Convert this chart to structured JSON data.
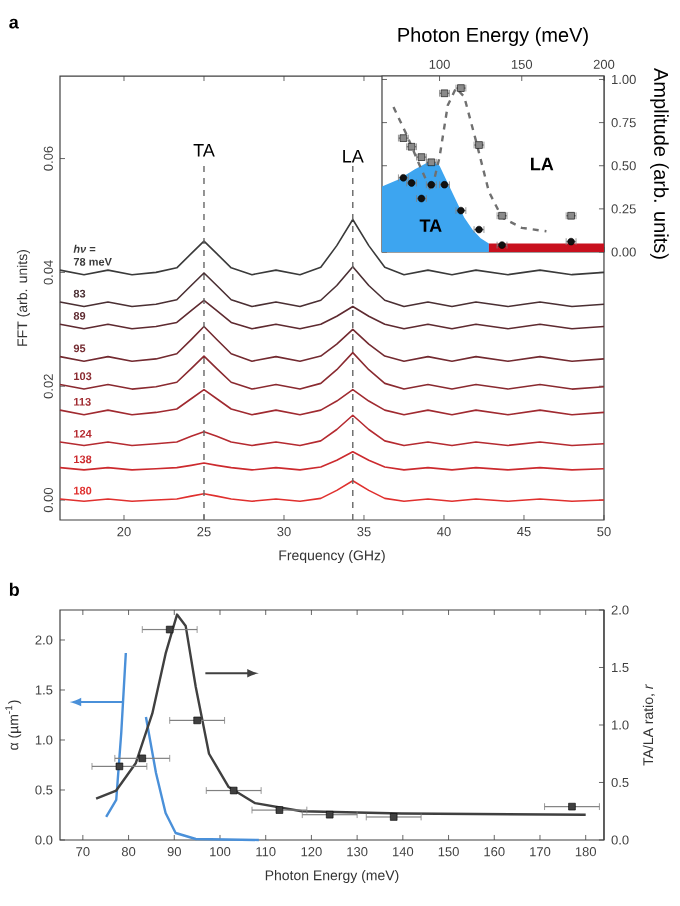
{
  "chart_data": [
    {
      "type": "line",
      "xlabel": "Frequency (GHz)",
      "ylabel": "FFT (arb. units)",
      "xlim": [
        16,
        50
      ],
      "ylim": [
        -0.0035,
        0.0745
      ],
      "xticks": [
        20,
        25,
        30,
        35,
        40,
        45,
        50
      ],
      "yticks": [
        {
          "value": 0,
          "label": "0.00"
        },
        {
          "value": 0.02,
          "label": "0.02"
        },
        {
          "value": 0.04,
          "label": "0.04"
        },
        {
          "value": 0.06,
          "label": "0.06"
        }
      ],
      "x": [
        16,
        17.5,
        19,
        20.5,
        22,
        23.3,
        24.2,
        25,
        25.8,
        26.7,
        28,
        29.5,
        31,
        32.3,
        33.3,
        34.3,
        35.3,
        36.3,
        37.5,
        39,
        40.5,
        42,
        44,
        46,
        48,
        50
      ],
      "series": [
        {
          "name": "78 meV",
          "color": "#3a3a3a",
          "values": [
            0.0404,
            0.0396,
            0.0404,
            0.0396,
            0.04,
            0.0408,
            0.0433,
            0.0455,
            0.0433,
            0.0408,
            0.0396,
            0.0404,
            0.0396,
            0.0409,
            0.0447,
            0.0493,
            0.0447,
            0.0409,
            0.0396,
            0.0404,
            0.0396,
            0.0404,
            0.0396,
            0.0404,
            0.0396,
            0.04
          ]
        },
        {
          "name": "83",
          "color": "#4a2f33",
          "values": [
            0.0348,
            0.034,
            0.0348,
            0.034,
            0.0344,
            0.0352,
            0.0377,
            0.0399,
            0.0377,
            0.0352,
            0.034,
            0.0348,
            0.034,
            0.0351,
            0.0377,
            0.041,
            0.0377,
            0.0351,
            0.034,
            0.0348,
            0.034,
            0.0348,
            0.034,
            0.0348,
            0.034,
            0.0344
          ]
        },
        {
          "name": "89",
          "color": "#5e2a30",
          "values": [
            0.0309,
            0.0301,
            0.0309,
            0.0301,
            0.0305,
            0.0312,
            0.0333,
            0.0351,
            0.0333,
            0.0312,
            0.0301,
            0.0309,
            0.0301,
            0.0309,
            0.0323,
            0.034,
            0.0323,
            0.0309,
            0.0301,
            0.0309,
            0.0301,
            0.0309,
            0.0301,
            0.0309,
            0.0301,
            0.0305
          ]
        },
        {
          "name": "95",
          "color": "#732a30",
          "values": [
            0.0252,
            0.0244,
            0.0252,
            0.0244,
            0.0248,
            0.0257,
            0.0282,
            0.0305,
            0.0282,
            0.0257,
            0.0244,
            0.0252,
            0.0244,
            0.0253,
            0.0274,
            0.03,
            0.0274,
            0.0253,
            0.0244,
            0.0252,
            0.0244,
            0.0252,
            0.0244,
            0.0252,
            0.0244,
            0.0248
          ]
        },
        {
          "name": "103",
          "color": "#8a2a30",
          "values": [
            0.0203,
            0.0195,
            0.0203,
            0.0195,
            0.0199,
            0.0207,
            0.0231,
            0.0253,
            0.0231,
            0.0207,
            0.0195,
            0.0203,
            0.0195,
            0.0205,
            0.0229,
            0.0259,
            0.0229,
            0.0205,
            0.0195,
            0.0203,
            0.0195,
            0.0203,
            0.0195,
            0.0203,
            0.0195,
            0.0199
          ]
        },
        {
          "name": "113",
          "color": "#a02a30",
          "values": [
            0.0158,
            0.015,
            0.0158,
            0.015,
            0.0154,
            0.016,
            0.0178,
            0.0194,
            0.0178,
            0.016,
            0.015,
            0.0158,
            0.015,
            0.0158,
            0.0174,
            0.0194,
            0.0174,
            0.0158,
            0.015,
            0.0158,
            0.015,
            0.0158,
            0.015,
            0.0158,
            0.015,
            0.0154
          ]
        },
        {
          "name": "124",
          "color": "#b52a30",
          "values": [
            0.0102,
            0.0096,
            0.0102,
            0.0096,
            0.0099,
            0.0102,
            0.0112,
            0.012,
            0.0112,
            0.0102,
            0.0096,
            0.0102,
            0.0096,
            0.0104,
            0.0124,
            0.0149,
            0.0124,
            0.0104,
            0.0096,
            0.0102,
            0.0096,
            0.0102,
            0.0096,
            0.0102,
            0.0096,
            0.0099
          ]
        },
        {
          "name": "138",
          "color": "#cc2a2e",
          "values": [
            0.0057,
            0.0053,
            0.0057,
            0.0053,
            0.0055,
            0.0057,
            0.0061,
            0.0065,
            0.0061,
            0.0057,
            0.0053,
            0.0057,
            0.0053,
            0.0058,
            0.007,
            0.0085,
            0.007,
            0.0058,
            0.0053,
            0.0057,
            0.0053,
            0.0057,
            0.0053,
            0.0057,
            0.0053,
            0.0055
          ]
        },
        {
          "name": "180",
          "color": "#e0302e",
          "values": [
            0.0002,
            -0.0002,
            0.0002,
            -0.0002,
            0.0,
            0.0002,
            0.0007,
            0.0011,
            0.0007,
            0.0002,
            -0.0002,
            0.0002,
            -0.0002,
            0.0003,
            0.0017,
            0.0034,
            0.0017,
            0.0003,
            -0.0002,
            0.0002,
            -0.0002,
            0.0002,
            -0.0002,
            0.0002,
            -0.0002,
            0.0
          ]
        }
      ],
      "ref_lines": [
        {
          "axis": "x",
          "value": 25,
          "line_style": "dashed",
          "color": "#666666"
        },
        {
          "axis": "x",
          "value": 34.3,
          "line_style": "dashed",
          "color": "#666666"
        }
      ],
      "annotations": [
        "**a**",
        "*hν* =",
        "TA",
        "LA"
      ]
    },
    {
      "type": "scatter",
      "xlabel": "Photon Energy (meV)",
      "ylabel": "Amplitude (arb. units)",
      "xlim": [
        65,
        200
      ],
      "ylim": [
        0,
        1.02
      ],
      "xticks": [
        100,
        150,
        200
      ],
      "yticks": [
        {
          "value": 0,
          "label": "0.00"
        },
        {
          "value": 0.25,
          "label": "0.25"
        },
        {
          "value": 0.5,
          "label": "0.50"
        },
        {
          "value": 0.75,
          "label": "0.75"
        },
        {
          "value": 1,
          "label": "1.00"
        }
      ],
      "series": [
        {
          "type": "area",
          "color": "#3da5f0",
          "x": [
            65,
            75,
            85,
            95,
            100,
            105,
            110,
            115,
            120,
            125,
            130
          ],
          "values": [
            0.38,
            0.42,
            0.48,
            0.53,
            0.5,
            0.4,
            0.3,
            0.2,
            0.13,
            0.08,
            0.05
          ]
        },
        {
          "type": "area",
          "color": "#c8101e",
          "x": [
            130,
            200
          ],
          "values": [
            0.05,
            0.05
          ]
        },
        {
          "type": "line",
          "color": "#707070",
          "line_style": "dashed",
          "x": [
            72,
            80,
            88,
            95,
            100,
            105,
            110,
            115,
            122,
            130,
            138,
            150,
            165
          ],
          "values": [
            0.84,
            0.68,
            0.5,
            0.35,
            0.55,
            0.85,
            0.95,
            0.9,
            0.65,
            0.35,
            0.2,
            0.14,
            0.12
          ]
        },
        {
          "type": "scatter",
          "marker": "square",
          "color": "#8a8a8a",
          "x": [
            78,
            83,
            89,
            95,
            103,
            113,
            124,
            138,
            180
          ],
          "values": [
            0.66,
            0.61,
            0.55,
            0.52,
            0.92,
            0.95,
            0.62,
            0.21,
            0.21
          ],
          "xerrors": [
            3,
            3,
            3,
            3,
            3,
            3,
            3,
            3,
            3
          ]
        },
        {
          "type": "scatter",
          "marker": "circle",
          "color": "#111111",
          "x": [
            78,
            83,
            89,
            95,
            103,
            113,
            124,
            138,
            180
          ],
          "values": [
            0.43,
            0.4,
            0.31,
            0.39,
            0.39,
            0.24,
            0.13,
            0.04,
            0.06
          ],
          "xerrors": [
            3,
            3,
            3,
            3,
            3,
            3,
            3,
            3,
            3
          ]
        }
      ],
      "annotations": [
        "TA",
        "LA"
      ]
    },
    {
      "type": "scatter",
      "xlabel": "Photon Energy (meV)",
      "ylabel": "α (µm$^{-1}$)",
      "y2label": "TA/LA ratio, *r*",
      "xlim": [
        65,
        184
      ],
      "ylim": [
        0,
        2.3
      ],
      "y2lim": [
        0,
        2.0
      ],
      "xticks": [
        70,
        80,
        90,
        100,
        110,
        120,
        130,
        140,
        150,
        160,
        170,
        180
      ],
      "yticks": [
        {
          "value": 0,
          "label": "0.0"
        },
        {
          "value": 0.5,
          "label": "0.5"
        },
        {
          "value": 1,
          "label": "1.0"
        },
        {
          "value": 1.5,
          "label": "1.5"
        },
        {
          "value": 2,
          "label": "2.0"
        }
      ],
      "y2ticks": [
        {
          "value": 0,
          "label": "0.0"
        },
        {
          "value": 0.5,
          "label": "0.5"
        },
        {
          "value": 1,
          "label": "1.0"
        },
        {
          "value": 1.5,
          "label": "1.5"
        },
        {
          "value": 2,
          "label": "2.0"
        }
      ],
      "series": [
        {
          "type": "line",
          "color": "#4a90d9",
          "x": [
            75.1,
            77.3,
            78.4,
            79.4,
            79.9,
            81.0,
            83.8,
            86.0,
            88.1,
            90.3,
            94.7,
            108.5
          ],
          "values": [
            0.23,
            0.4,
            1.07,
            1.87,
            null,
            null,
            1.23,
            0.67,
            0.27,
            0.07,
            0.01,
            0.0
          ]
        },
        {
          "type": "line",
          "axis": "y2",
          "color": "#404040",
          "x": [
            72.9,
            77.3,
            81.6,
            85.2,
            88.1,
            90.6,
            92.5,
            94.7,
            97.6,
            101.9,
            107.7,
            117.9,
            139.7,
            180
          ],
          "values": [
            0.36,
            0.43,
            0.67,
            1.1,
            1.62,
            1.96,
            1.86,
            1.33,
            0.75,
            0.46,
            0.32,
            0.25,
            0.23,
            0.22
          ]
        },
        {
          "type": "scatter",
          "axis": "y2",
          "marker": "square",
          "color": "#404040",
          "x": [
            78,
            83,
            89,
            95,
            103,
            113,
            124,
            138,
            177
          ],
          "values": [
            0.64,
            0.71,
            1.83,
            1.04,
            0.43,
            0.26,
            0.22,
            0.2,
            0.29
          ],
          "xerrors": [
            6,
            6,
            6,
            6,
            6,
            6,
            6,
            6,
            6
          ]
        }
      ],
      "annotations": [
        "**b**"
      ]
    }
  ]
}
